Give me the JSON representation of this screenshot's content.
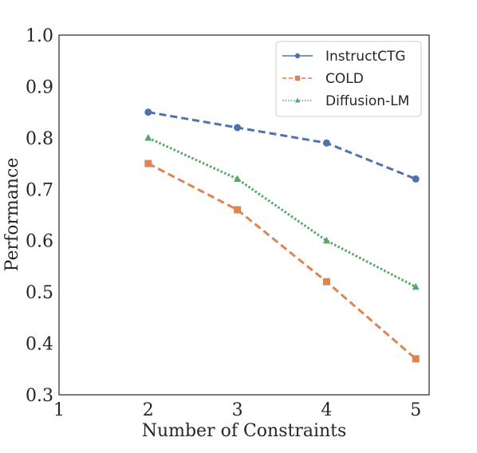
{
  "chart_data": {
    "type": "line",
    "xlabel": "Number of Constraints",
    "ylabel": "Performance",
    "xlim": [
      1,
      5.15
    ],
    "ylim": [
      0.3,
      1.0
    ],
    "xticks": [
      "1",
      "2",
      "3",
      "4",
      "5"
    ],
    "yticks": [
      "0.3",
      "0.4",
      "0.5",
      "0.6",
      "0.7",
      "0.8",
      "0.9",
      "1.0"
    ],
    "grid": false,
    "legend_position": "top-right",
    "x": [
      2,
      3,
      4,
      5
    ],
    "series": [
      {
        "name": "InstructCTG",
        "values": [
          0.85,
          0.82,
          0.79,
          0.72
        ],
        "color": "#4c72b0",
        "linestyle": "dashed",
        "marker": "circle"
      },
      {
        "name": "COLD",
        "values": [
          0.75,
          0.66,
          0.52,
          0.37
        ],
        "color": "#dd8452",
        "linestyle": "dashed",
        "marker": "square"
      },
      {
        "name": "Diffusion-LM",
        "values": [
          0.8,
          0.72,
          0.6,
          0.51
        ],
        "color": "#55a868",
        "linestyle": "dotted",
        "marker": "triangle"
      }
    ]
  }
}
